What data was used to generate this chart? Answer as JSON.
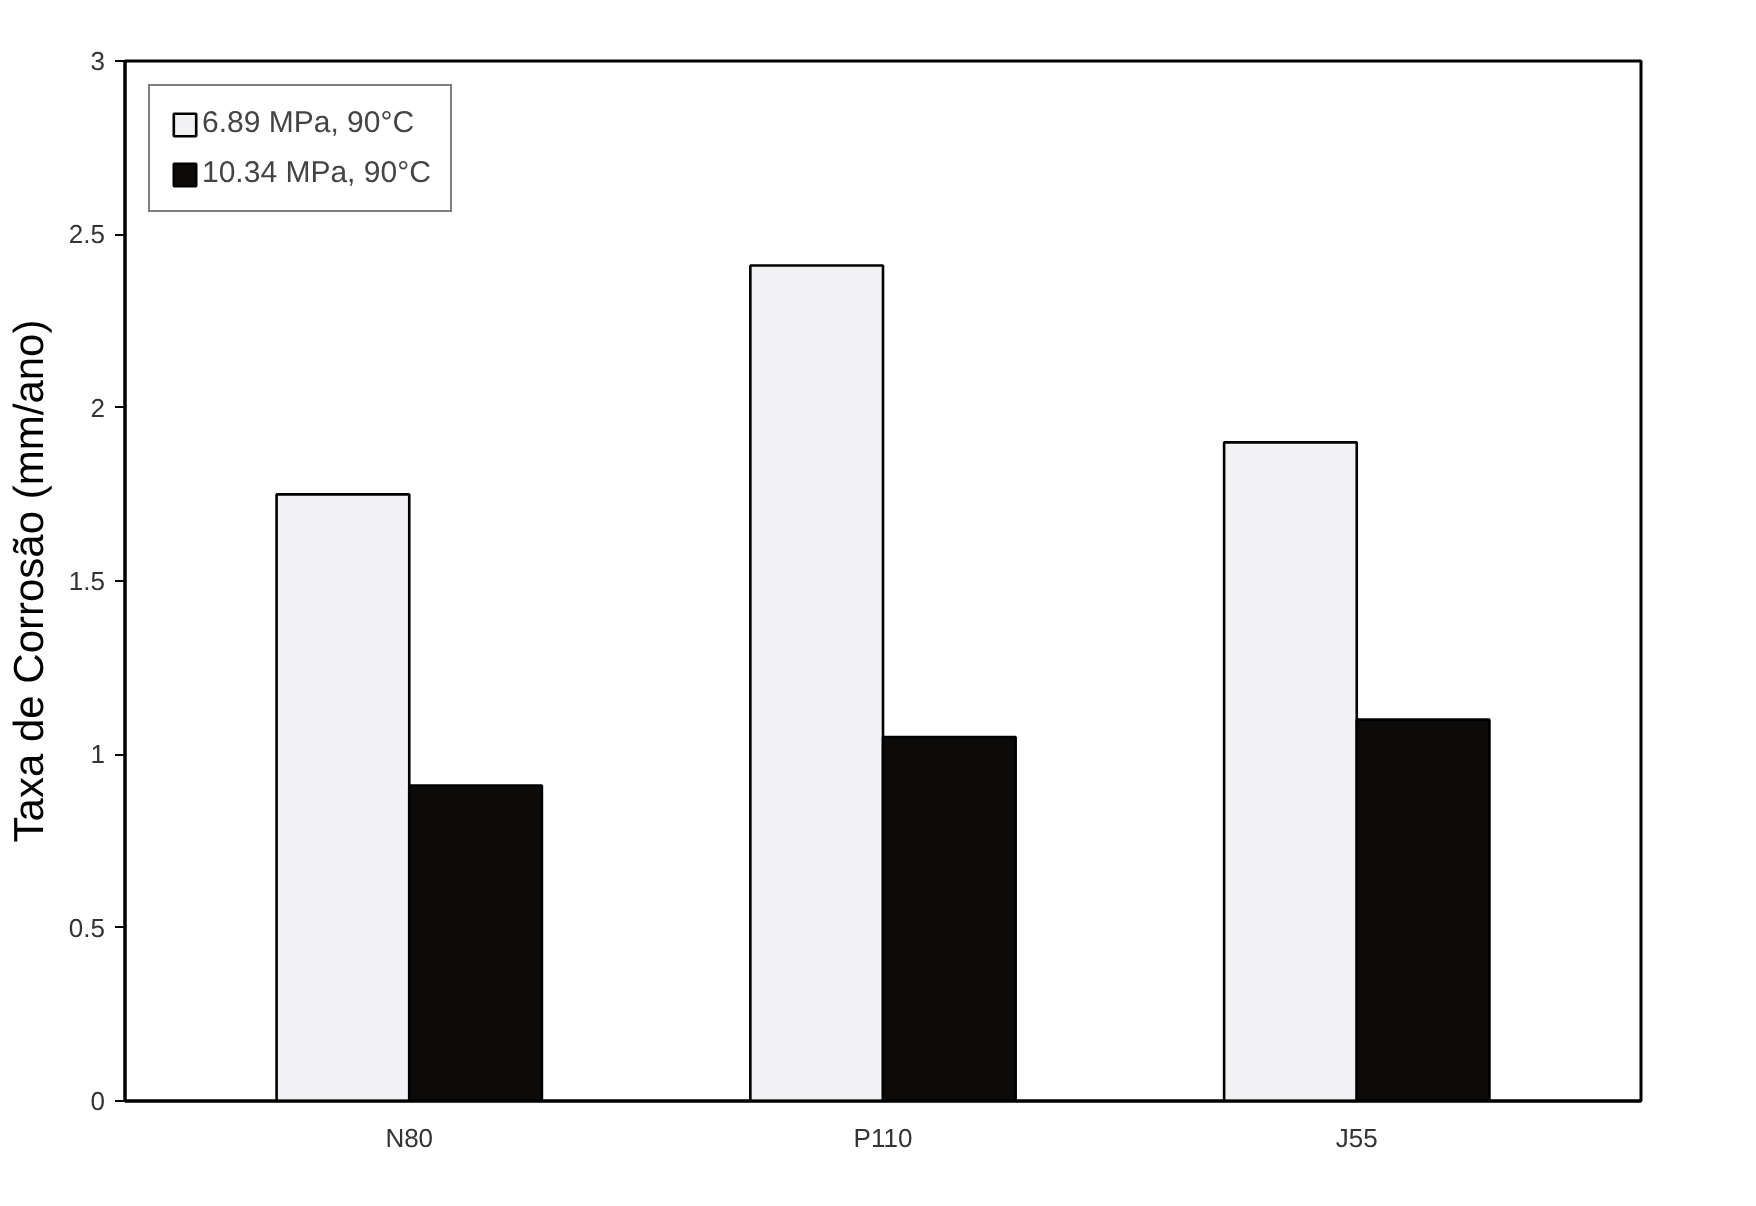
{
  "chart_data": {
    "type": "bar",
    "ylabel": "Taxa de Corrosão (mm/ano)",
    "categories": [
      "N80",
      "P110",
      "J55"
    ],
    "series": [
      {
        "name": "6.89 MPa, 90°C",
        "color": "#f2f2f4",
        "values": [
          1.75,
          2.41,
          1.9
        ]
      },
      {
        "name": "10.34 MPa, 90°C",
        "color": "#0d0a0a",
        "values": [
          0.91,
          1.05,
          1.1
        ]
      }
    ],
    "ylim": [
      0,
      3
    ],
    "yticks": [
      0,
      0.5,
      1,
      1.5,
      2,
      2.5,
      3
    ],
    "grid": false,
    "legend": "top left"
  }
}
